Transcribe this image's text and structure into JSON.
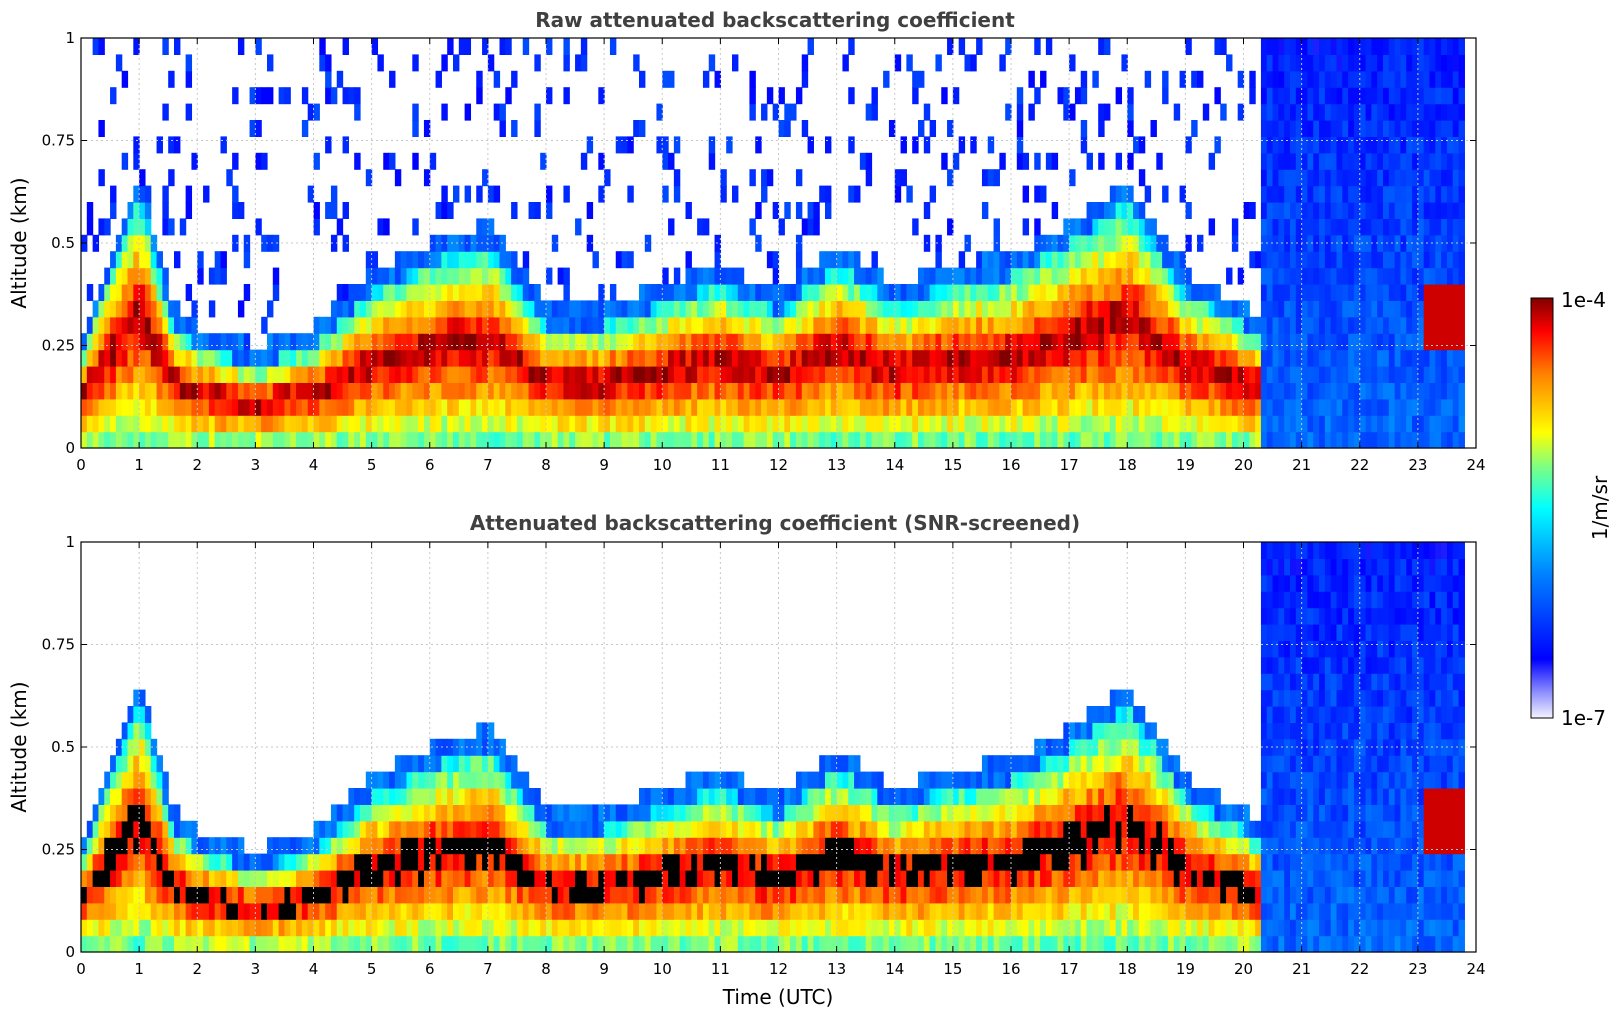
{
  "chart_data": [
    {
      "type": "heatmap",
      "title": "Raw attenuated backscattering coefficient",
      "xlabel": "",
      "ylabel": "Altitude (km)",
      "xlim": [
        0,
        24
      ],
      "ylim": [
        0,
        1
      ],
      "x_ticks": [
        "0",
        "1",
        "2",
        "3",
        "4",
        "5",
        "6",
        "7",
        "8",
        "9",
        "10",
        "11",
        "12",
        "13",
        "14",
        "15",
        "16",
        "17",
        "18",
        "19",
        "20",
        "21",
        "22",
        "23",
        "24"
      ],
      "y_ticks": [
        "0",
        "0.25",
        "0.5",
        "0.75",
        "1"
      ],
      "grid": true,
      "screened": false,
      "colormap": "jet",
      "data_extent_x": [
        0,
        23.8
      ],
      "layer_top_km": [
        [
          0,
          0.23
        ],
        [
          1,
          0.62
        ],
        [
          1.6,
          0.3
        ],
        [
          2,
          0.25
        ],
        [
          3,
          0.2
        ],
        [
          4,
          0.25
        ],
        [
          5,
          0.38
        ],
        [
          6,
          0.45
        ],
        [
          7,
          0.5
        ],
        [
          8,
          0.3
        ],
        [
          9,
          0.3
        ],
        [
          10,
          0.35
        ],
        [
          11,
          0.4
        ],
        [
          12,
          0.33
        ],
        [
          13,
          0.45
        ],
        [
          14,
          0.35
        ],
        [
          15,
          0.4
        ],
        [
          16,
          0.42
        ],
        [
          17,
          0.5
        ],
        [
          18,
          0.6
        ],
        [
          19,
          0.38
        ],
        [
          20,
          0.3
        ],
        [
          21,
          0.22
        ],
        [
          22,
          0.2
        ],
        [
          23,
          0.25
        ],
        [
          23.8,
          0.4
        ]
      ]
    },
    {
      "type": "heatmap",
      "title": "Attenuated backscattering coefficient (SNR-screened)",
      "xlabel": "Time (UTC)",
      "ylabel": "Altitude (km)",
      "xlim": [
        0,
        24
      ],
      "ylim": [
        0,
        1
      ],
      "x_ticks": [
        "0",
        "1",
        "2",
        "3",
        "4",
        "5",
        "6",
        "7",
        "8",
        "9",
        "10",
        "11",
        "12",
        "13",
        "14",
        "15",
        "16",
        "17",
        "18",
        "19",
        "20",
        "21",
        "22",
        "23",
        "24"
      ],
      "y_ticks": [
        "0",
        "0.25",
        "0.5",
        "0.75",
        "1"
      ],
      "grid": true,
      "screened": true,
      "colormap": "jet",
      "data_extent_x": [
        0,
        23.8
      ],
      "layer_top_km": [
        [
          0,
          0.23
        ],
        [
          1,
          0.62
        ],
        [
          1.6,
          0.3
        ],
        [
          2,
          0.25
        ],
        [
          3,
          0.2
        ],
        [
          4,
          0.25
        ],
        [
          5,
          0.38
        ],
        [
          6,
          0.45
        ],
        [
          7,
          0.5
        ],
        [
          8,
          0.3
        ],
        [
          9,
          0.3
        ],
        [
          10,
          0.35
        ],
        [
          11,
          0.4
        ],
        [
          12,
          0.33
        ],
        [
          13,
          0.45
        ],
        [
          14,
          0.35
        ],
        [
          15,
          0.4
        ],
        [
          16,
          0.42
        ],
        [
          17,
          0.5
        ],
        [
          18,
          0.6
        ],
        [
          19,
          0.38
        ],
        [
          20,
          0.3
        ],
        [
          21,
          0.22
        ],
        [
          22,
          0.2
        ],
        [
          23,
          0.25
        ],
        [
          23.8,
          0.4
        ]
      ]
    }
  ],
  "colorbar": {
    "label": "1/m/sr",
    "max_label": "1e-4",
    "min_label": "1e-7",
    "scale": "log",
    "range": [
      1e-07,
      0.0001
    ]
  },
  "colors": {
    "title": "#404040",
    "grid": "#c8c8c8",
    "clipped": "#000000"
  }
}
